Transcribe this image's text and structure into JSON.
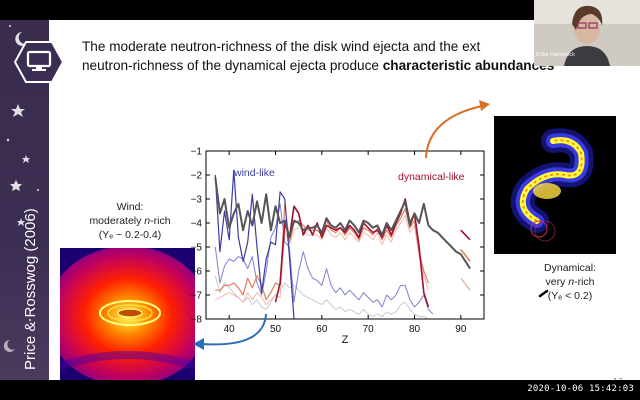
{
  "slide": {
    "title_line1": "The moderate neutron-richness of the disk wind ejecta and the ext",
    "title_line2a": "neutron-richness of the dynamical ejecta produce ",
    "title_line2b": "characteristic abundances",
    "author": "Price & Rosswog (2006)",
    "page_number": "12",
    "wind": {
      "line1": "Wind:",
      "line2a": "moderately ",
      "line2b": "n",
      "line2c": "-rich",
      "line3": "(Yₑ ~ 0.2-0.4)"
    },
    "dynamical": {
      "line1": "Dynamical:",
      "line2a": "very ",
      "line2b": "n",
      "line2c": "-rich",
      "line3": "(Yₑ < 0.2)"
    }
  },
  "webcam": {
    "name_label": "Erika Holmbeck"
  },
  "timestamp": "2020-10-06  15:42:03",
  "icons": {
    "slide_icon": "monitor-icon",
    "decorations": "star-icon"
  },
  "colors": {
    "wind": "#3b3ba8",
    "dynamical": "#a01030",
    "sidebar": "#3a2c4e",
    "arrow_wind": "#2a6fb8",
    "arrow_dyn": "#d9702a"
  },
  "chart_data": {
    "type": "line",
    "xlabel": "Z",
    "ylabel": "",
    "xlim": [
      35,
      95
    ],
    "ylim": [
      -8,
      -1
    ],
    "xticks": [
      40,
      50,
      60,
      70,
      80,
      90
    ],
    "yticks": [
      -1,
      -2,
      -3,
      -4,
      -5,
      -6,
      -7,
      -8
    ],
    "annotations": [
      "wind-like",
      "dynamical-like"
    ],
    "x": [
      37,
      38,
      39,
      40,
      41,
      42,
      43,
      44,
      45,
      46,
      47,
      48,
      49,
      50,
      51,
      52,
      53,
      54,
      55,
      56,
      57,
      58,
      59,
      60,
      61,
      62,
      63,
      64,
      65,
      66,
      67,
      68,
      69,
      70,
      71,
      72,
      73,
      74,
      75,
      76,
      77,
      78,
      79,
      80,
      81,
      82,
      83,
      84,
      85,
      86,
      87,
      88,
      89,
      90,
      91,
      92
    ],
    "series": [
      {
        "color": "#555555",
        "width": 2.0,
        "values": [
          -2.1,
          -3.6,
          -3.0,
          -4.2,
          -3.6,
          -3.2,
          -4.3,
          -3.5,
          -4.1,
          -3.1,
          -4.0,
          -2.8,
          -4.3,
          -3.3,
          -4.0,
          -3.9,
          -4.6,
          -3.9,
          -4.0,
          -4.3,
          -4.2,
          -4.2,
          -4.1,
          -4.4,
          -3.8,
          -4.1,
          -4.2,
          -4.0,
          -4.3,
          -3.9,
          -4.1,
          -4.4,
          -3.9,
          -4.0,
          -4.2,
          -4.1,
          -4.5,
          -4.0,
          -4.3,
          -3.9,
          -3.5,
          -3.1,
          -4.1,
          -3.6,
          -4.0,
          -3.2,
          -4.1,
          -4.3,
          -4.4,
          -4.6,
          -4.8,
          -5.0,
          -5.2,
          -5.3,
          -5.6,
          -5.9
        ]
      },
      {
        "color": "#3b3ba8",
        "width": 1.2,
        "values": [
          -2.0,
          -5.2,
          -3.5,
          -4.7,
          -1.8,
          -4.6,
          -5.6,
          -4.8,
          -2.8,
          -5.0,
          -6.9,
          -5.5,
          -4.8,
          -4.9,
          -2.7,
          -3.0,
          -5.4,
          -8.0,
          null,
          null,
          null,
          null,
          null,
          null,
          null,
          null,
          null,
          null,
          null,
          null,
          null,
          null,
          null,
          null,
          null,
          null,
          null,
          null,
          null,
          null,
          null,
          null,
          null,
          null,
          null,
          null,
          null,
          null,
          null,
          null,
          null,
          null,
          null,
          null,
          null,
          null
        ]
      },
      {
        "color": "#8080d0",
        "width": 1.0,
        "values": [
          -5.0,
          -6.5,
          -5.8,
          -5.5,
          -5.6,
          -5.4,
          -5.5,
          -5.9,
          -5.4,
          -6.5,
          -7.0,
          -6.0,
          -4.6,
          -4.2,
          -3.2,
          -4.8,
          -5.0,
          -7.3,
          -6.0,
          -5.2,
          -5.9,
          -6.3,
          -6.4,
          -6.6,
          -5.9,
          -6.6,
          -6.9,
          -6.7,
          -7.0,
          -6.8,
          -7.0,
          -7.2,
          -6.9,
          -7.1,
          -7.3,
          -7.2,
          -7.5,
          -7.0,
          -7.2,
          -7.0,
          -6.6,
          -6.6,
          -7.2,
          -7.5,
          -7.3,
          -7.0,
          -7.6,
          -7.8,
          null,
          null,
          null,
          null,
          null,
          null,
          null,
          null
        ]
      },
      {
        "color": "#a01030",
        "width": 1.6,
        "values": [
          null,
          null,
          null,
          null,
          null,
          null,
          null,
          null,
          null,
          null,
          null,
          null,
          null,
          -7.3,
          -6.5,
          -4.0,
          -4.6,
          -3.3,
          -3.6,
          -4.5,
          -4.1,
          -4.5,
          -4.0,
          -4.6,
          -4.1,
          -4.2,
          -4.3,
          -4.2,
          -4.4,
          -4.1,
          -4.3,
          -4.6,
          -4.0,
          -4.2,
          -4.4,
          -4.3,
          -4.6,
          -4.1,
          -4.5,
          -4.0,
          -3.6,
          -3.0,
          -4.0,
          -3.6,
          -5.0,
          -6.9,
          -7.5,
          null,
          null,
          null,
          null,
          null,
          null,
          null,
          null,
          null
        ]
      },
      {
        "color": "#e08060",
        "width": 1.2,
        "values": [
          -6.8,
          -6.8,
          -6.6,
          -6.6,
          -6.5,
          -6.7,
          -7.0,
          -6.3,
          -6.7,
          -6.2,
          -6.6,
          -7.2,
          -6.9,
          -6.5,
          -6.6,
          -3.2,
          -4.8,
          -4.0,
          -3.9,
          -4.1,
          -4.3,
          -4.3,
          -4.3,
          -4.5,
          -3.9,
          -4.3,
          -4.4,
          -4.2,
          -4.5,
          -4.2,
          -4.4,
          -4.7,
          -4.2,
          -4.3,
          -4.5,
          -4.2,
          -4.7,
          -4.3,
          -4.6,
          -4.1,
          -3.8,
          -3.4,
          -4.2,
          -3.9,
          -5.2,
          -6.0,
          -6.5,
          null,
          null,
          null,
          null,
          null,
          null,
          null,
          null,
          null
        ]
      },
      {
        "color": "#f2b8a8",
        "width": 1.0,
        "values": [
          -7.2,
          -7.1,
          -7.0,
          -6.9,
          -7.0,
          -7.1,
          -7.3,
          -6.9,
          -7.2,
          -6.9,
          -7.1,
          -7.4,
          -7.2,
          -7.0,
          -7.1,
          -4.3,
          -4.9,
          -4.3,
          -4.2,
          -4.3,
          -4.5,
          -4.5,
          -4.5,
          -4.7,
          -4.2,
          -4.5,
          -4.6,
          -4.4,
          -4.7,
          -4.4,
          -4.6,
          -4.8,
          -4.4,
          -4.5,
          -4.7,
          -4.4,
          -4.9,
          -4.5,
          -4.8,
          -4.3,
          -4.0,
          -3.7,
          -4.4,
          -4.1,
          -5.4,
          -6.2,
          -6.8,
          null,
          null,
          null,
          null,
          null,
          null,
          null,
          null,
          null
        ]
      },
      {
        "color": "#c8c8d8",
        "width": 1.0,
        "values": [
          -6.2,
          -6.9,
          -6.5,
          -6.7,
          -6.9,
          -7.1,
          -7.3,
          -7.1,
          -7.4,
          -7.2,
          -7.5,
          -7.6,
          -7.3,
          -7.0,
          -6.8,
          -6.5,
          -6.7,
          -6.6,
          -6.8,
          -7.0,
          -7.1,
          -7.2,
          -7.3,
          -7.4,
          -7.2,
          -7.4,
          -7.6,
          -7.5,
          -7.7,
          -7.6,
          -7.7,
          -7.8,
          -7.6,
          -7.8,
          -7.9,
          -7.8,
          -7.9,
          -7.7,
          -7.8,
          -7.7,
          -7.4,
          -7.3,
          -7.6,
          -7.8,
          -7.9,
          -7.9,
          -8.0,
          null,
          null,
          null,
          null,
          null,
          null,
          null,
          null,
          null
        ]
      }
    ],
    "extra_segments": [
      {
        "color": "#a01030",
        "x": [
          90,
          92
        ],
        "values": [
          -4.3,
          -4.7
        ]
      },
      {
        "color": "#e08060",
        "x": [
          90,
          92
        ],
        "values": [
          -5.1,
          -5.6
        ]
      },
      {
        "color": "#f2b8a8",
        "x": [
          90,
          92
        ],
        "values": [
          -6.3,
          -6.8
        ]
      }
    ]
  }
}
